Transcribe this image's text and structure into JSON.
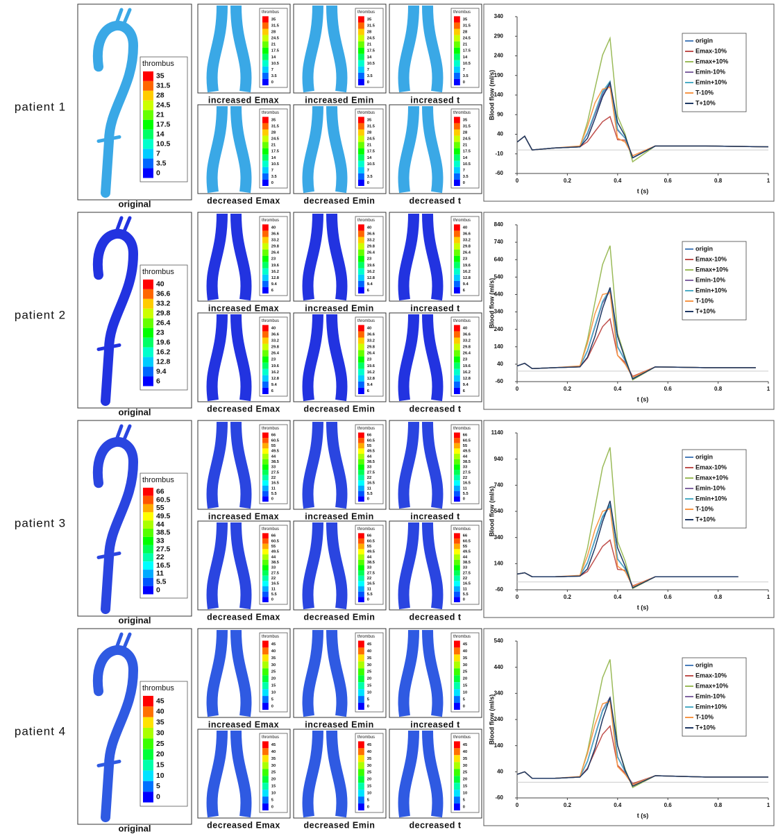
{
  "patients": [
    {
      "label": "patient 1",
      "original_caption": "original",
      "colorbar": {
        "title": "thrombus",
        "levels": [
          35,
          31.5,
          28,
          24.5,
          21,
          17.5,
          14,
          10.5,
          7,
          3.5,
          0
        ]
      },
      "panels": [
        "increased Emax",
        "increased Emin",
        "increased t",
        "decreased Emax",
        "decreased Emin",
        "decreased t"
      ]
    },
    {
      "label": "patient 2",
      "original_caption": "original",
      "colorbar": {
        "title": "thrombus",
        "levels": [
          40,
          36.6,
          33.2,
          29.8,
          26.4,
          23,
          19.6,
          16.2,
          12.8,
          9.4,
          6
        ]
      },
      "panels": [
        "increased Emax",
        "increased Emin",
        "increased t",
        "decreased Emax",
        "decreased Emin",
        "decreased t"
      ]
    },
    {
      "label": "patient 3",
      "original_caption": "original",
      "colorbar": {
        "title": "thrombus",
        "levels": [
          66,
          60.5,
          55,
          49.5,
          44,
          38.5,
          33,
          27.5,
          22,
          16.5,
          11,
          5.5,
          0
        ]
      },
      "panels": [
        "increased Emax",
        "increased Emin",
        "increased t",
        "decreased Emax",
        "decreased Emin",
        "decreased t"
      ]
    },
    {
      "label": "patient 4",
      "original_caption": "original",
      "colorbar": {
        "title": "thrombus",
        "levels": [
          45,
          40,
          35,
          30,
          25,
          20,
          15,
          10,
          5,
          0
        ]
      },
      "panels": [
        "increased Emax",
        "increased Emin",
        "increased t",
        "decreased Emax",
        "decreased Emin",
        "decreased t"
      ]
    }
  ],
  "chart_data": [
    {
      "type": "line",
      "y_label": "Blood flow (ml/s)",
      "x_label": "t (s)",
      "xlim": [
        0,
        1
      ],
      "xticks": [
        0,
        0.2,
        0.4,
        0.6,
        0.8,
        1
      ],
      "ylim": [
        -60,
        340
      ],
      "yticks": [
        -60,
        -10,
        40,
        90,
        140,
        190,
        240,
        290,
        340
      ],
      "x": [
        0,
        0.03,
        0.06,
        0.15,
        0.25,
        0.28,
        0.31,
        0.34,
        0.37,
        0.4,
        0.43,
        0.46,
        0.55,
        0.75,
        1.0
      ],
      "series": [
        {
          "name": "origin",
          "color": "#4a7ebb",
          "values": [
            20,
            35,
            0,
            5,
            8,
            43,
            94,
            145,
            170,
            51,
            30,
            -20,
            10,
            10,
            8
          ]
        },
        {
          "name": "Emax-10%",
          "color": "#c0504d",
          "values": [
            20,
            35,
            0,
            5,
            8,
            21,
            47,
            72,
            85,
            26,
            25,
            -15,
            10,
            10,
            8
          ]
        },
        {
          "name": "Emax+10%",
          "color": "#9bbb59",
          "values": [
            20,
            35,
            0,
            5,
            8,
            71,
            157,
            242,
            285,
            86,
            40,
            -30,
            10,
            10,
            8
          ]
        },
        {
          "name": "Emin-10%",
          "color": "#8064a2",
          "values": [
            20,
            35,
            0,
            5,
            8,
            41,
            91,
            140,
            165,
            50,
            30,
            -20,
            10,
            10,
            8
          ]
        },
        {
          "name": "Emin+10%",
          "color": "#4bacc6",
          "values": [
            20,
            35,
            0,
            5,
            8,
            44,
            96,
            149,
            175,
            53,
            30,
            -20,
            10,
            10,
            8
          ]
        },
        {
          "name": "T-10%",
          "color": "#f79646",
          "values": [
            20,
            35,
            0,
            5,
            10,
            60,
            120,
            155,
            160,
            30,
            20,
            -15,
            10,
            10,
            8
          ]
        },
        {
          "name": "T+10%",
          "color": "#1f3864",
          "values": [
            20,
            35,
            0,
            5,
            8,
            30,
            80,
            135,
            172,
            70,
            35,
            -20,
            10,
            10,
            8
          ]
        }
      ]
    },
    {
      "type": "line",
      "y_label": "Blood flow (ml/s)",
      "x_label": "t (s)",
      "xlim": [
        0,
        1
      ],
      "xticks": [
        0,
        0.2,
        0.4,
        0.6,
        0.8,
        1
      ],
      "ylim": [
        -60,
        840
      ],
      "yticks": [
        -60,
        40,
        140,
        240,
        340,
        440,
        540,
        640,
        740,
        840
      ],
      "x": [
        0,
        0.03,
        0.06,
        0.15,
        0.25,
        0.28,
        0.31,
        0.34,
        0.37,
        0.4,
        0.43,
        0.46,
        0.55,
        0.75,
        0.95
      ],
      "series": [
        {
          "name": "origin",
          "color": "#4a7ebb",
          "values": [
            30,
            45,
            15,
            20,
            25,
            118,
            259,
            400,
            470,
            141,
            60,
            -40,
            25,
            20,
            20
          ]
        },
        {
          "name": "Emax-10%",
          "color": "#c0504d",
          "values": [
            30,
            45,
            15,
            20,
            25,
            75,
            165,
            255,
            300,
            90,
            50,
            -30,
            25,
            20,
            20
          ]
        },
        {
          "name": "Emax+10%",
          "color": "#9bbb59",
          "values": [
            30,
            45,
            15,
            20,
            25,
            180,
            396,
            612,
            720,
            216,
            80,
            -50,
            25,
            20,
            20
          ]
        },
        {
          "name": "Emin-10%",
          "color": "#8064a2",
          "values": [
            30,
            45,
            15,
            20,
            25,
            115,
            253,
            391,
            460,
            138,
            60,
            -40,
            25,
            20,
            20
          ]
        },
        {
          "name": "Emin+10%",
          "color": "#4bacc6",
          "values": [
            30,
            45,
            15,
            20,
            25,
            118,
            259,
            400,
            470,
            141,
            60,
            -40,
            25,
            20,
            20
          ]
        },
        {
          "name": "T-10%",
          "color": "#f79646",
          "values": [
            30,
            45,
            15,
            20,
            30,
            160,
            330,
            440,
            450,
            90,
            40,
            -35,
            25,
            20,
            20
          ]
        },
        {
          "name": "T+10%",
          "color": "#1f3864",
          "values": [
            30,
            45,
            15,
            20,
            25,
            80,
            200,
            360,
            480,
            200,
            70,
            -45,
            25,
            20,
            20
          ]
        }
      ]
    },
    {
      "type": "line",
      "y_label": "Blood flow (ml/s)",
      "x_label": "t (s)",
      "xlim": [
        0,
        1
      ],
      "xticks": [
        0,
        0.2,
        0.4,
        0.6,
        0.8,
        1
      ],
      "ylim": [
        -60,
        1140
      ],
      "yticks": [
        -60,
        140,
        340,
        540,
        740,
        940,
        1140
      ],
      "x": [
        0,
        0.03,
        0.06,
        0.15,
        0.25,
        0.28,
        0.31,
        0.34,
        0.37,
        0.4,
        0.43,
        0.46,
        0.55,
        0.75,
        0.88
      ],
      "series": [
        {
          "name": "origin",
          "color": "#4a7ebb",
          "values": [
            60,
            70,
            40,
            40,
            45,
            145,
            319,
            493,
            580,
            174,
            100,
            -40,
            40,
            40,
            40
          ]
        },
        {
          "name": "Emax-10%",
          "color": "#c0504d",
          "values": [
            60,
            70,
            40,
            40,
            45,
            80,
            176,
            272,
            320,
            96,
            90,
            -30,
            40,
            40,
            40
          ]
        },
        {
          "name": "Emax+10%",
          "color": "#9bbb59",
          "values": [
            60,
            70,
            40,
            40,
            45,
            258,
            567,
            876,
            1030,
            309,
            160,
            -50,
            40,
            40,
            40
          ]
        },
        {
          "name": "Emin-10%",
          "color": "#8064a2",
          "values": [
            60,
            70,
            40,
            40,
            45,
            148,
            325,
            502,
            590,
            177,
            100,
            -40,
            40,
            40,
            40
          ]
        },
        {
          "name": "Emin+10%",
          "color": "#4bacc6",
          "values": [
            60,
            70,
            40,
            40,
            45,
            148,
            325,
            502,
            590,
            177,
            100,
            -40,
            40,
            40,
            40
          ]
        },
        {
          "name": "T-10%",
          "color": "#f79646",
          "values": [
            60,
            70,
            40,
            40,
            50,
            200,
            400,
            540,
            560,
            120,
            80,
            -35,
            40,
            40,
            40
          ]
        },
        {
          "name": "T+10%",
          "color": "#1f3864",
          "values": [
            60,
            70,
            40,
            40,
            45,
            100,
            260,
            460,
            620,
            260,
            120,
            -45,
            40,
            40,
            40
          ]
        }
      ]
    },
    {
      "type": "line",
      "y_label": "Blood flow (ml/s)",
      "x_label": "t (s)",
      "xlim": [
        0,
        1
      ],
      "xticks": [
        0,
        0.2,
        0.4,
        0.6,
        0.8,
        1
      ],
      "ylim": [
        -60,
        540
      ],
      "yticks": [
        -60,
        40,
        140,
        240,
        340,
        440,
        540
      ],
      "x": [
        0,
        0.03,
        0.06,
        0.15,
        0.25,
        0.28,
        0.31,
        0.34,
        0.37,
        0.4,
        0.43,
        0.46,
        0.55,
        0.75,
        1.0
      ],
      "series": [
        {
          "name": "origin",
          "color": "#4a7ebb",
          "values": [
            30,
            40,
            15,
            15,
            20,
            80,
            176,
            272,
            320,
            96,
            40,
            -10,
            25,
            20,
            20
          ]
        },
        {
          "name": "Emax-10%",
          "color": "#c0504d",
          "values": [
            30,
            40,
            15,
            15,
            20,
            54,
            118,
            183,
            215,
            65,
            35,
            -5,
            25,
            20,
            20
          ]
        },
        {
          "name": "Emax+10%",
          "color": "#9bbb59",
          "values": [
            30,
            40,
            15,
            15,
            20,
            118,
            259,
            400,
            470,
            141,
            50,
            -20,
            25,
            20,
            20
          ]
        },
        {
          "name": "Emin-10%",
          "color": "#8064a2",
          "values": [
            30,
            40,
            15,
            15,
            20,
            81,
            179,
            276,
            325,
            98,
            40,
            -10,
            25,
            20,
            20
          ]
        },
        {
          "name": "Emin+10%",
          "color": "#4bacc6",
          "values": [
            30,
            40,
            15,
            15,
            20,
            80,
            176,
            272,
            320,
            96,
            40,
            -10,
            25,
            20,
            20
          ]
        },
        {
          "name": "T-10%",
          "color": "#f79646",
          "values": [
            30,
            40,
            15,
            15,
            22,
            110,
            220,
            300,
            310,
            60,
            30,
            -10,
            25,
            20,
            20
          ]
        },
        {
          "name": "T+10%",
          "color": "#1f3864",
          "values": [
            30,
            40,
            15,
            15,
            20,
            50,
            130,
            240,
            325,
            140,
            45,
            -15,
            25,
            20,
            20
          ]
        }
      ]
    }
  ]
}
